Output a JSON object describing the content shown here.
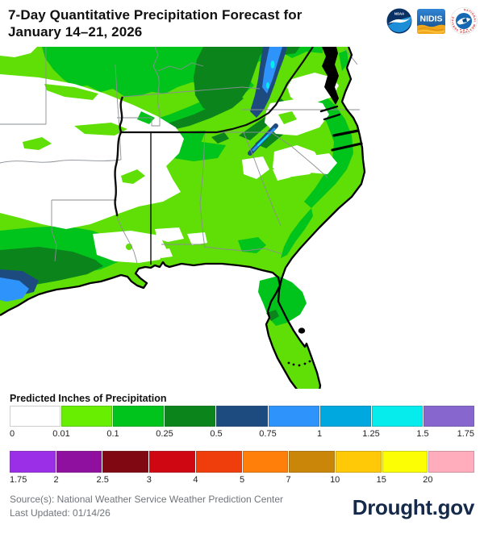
{
  "header": {
    "title_line1": "7-Day Quantitative Precipitation Forecast for",
    "title_line2": "January 14–21, 2026",
    "noaa_label": "NOAA",
    "nidis_label": "NIDIS",
    "nws_ring_text": "NATIONAL WEATHER SERVICE"
  },
  "legend": {
    "title": "Predicted Inches of Precipitation",
    "rows": [
      {
        "swatches": [
          "#FFFFFF",
          "#67EE00",
          "#00C31B",
          "#0B841C",
          "#1E4B7F",
          "#2E93FA",
          "#00A8E0",
          "#06ECEC",
          "#8766CE"
        ],
        "labels": [
          "0",
          "0.01",
          "0.1",
          "0.25",
          "0.5",
          "0.75",
          "1",
          "1.25",
          "1.5",
          "1.75"
        ]
      },
      {
        "swatches": [
          "#9B2FE8",
          "#8F0F9E",
          "#800813",
          "#CF0712",
          "#EF3E0C",
          "#FF7F0A",
          "#C98609",
          "#FFC907",
          "#FCFF04",
          "#FFADBC"
        ],
        "labels": [
          "1.75",
          "2",
          "2.5",
          "3",
          "4",
          "5",
          "7",
          "10",
          "15",
          "20"
        ]
      }
    ]
  },
  "map": {
    "colors": {
      "none": "#FFFFFF",
      "light": "#5FDF05",
      "medium": "#00C31B",
      "dark": "#0B841C",
      "navy": "#1E4B7F",
      "blue": "#2E93FA",
      "cyan": "#06ECEC"
    }
  },
  "footer": {
    "source": "Source(s): National Weather Service Weather Prediction Center",
    "last_updated": "Last Updated: 01/14/26",
    "brand": "Drought.gov"
  }
}
